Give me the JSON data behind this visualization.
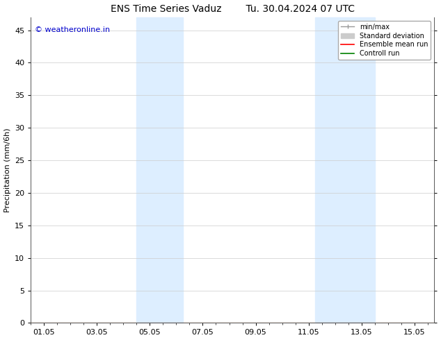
{
  "title_left": "ENS Time Series Vaduz",
  "title_right": "Tu. 30.04.2024 07 UTC",
  "ylabel": "Precipitation (mm/6h)",
  "ylim": [
    0,
    47
  ],
  "yticks": [
    0,
    5,
    10,
    15,
    20,
    25,
    30,
    35,
    40,
    45
  ],
  "xtick_labels": [
    "01.05",
    "03.05",
    "05.05",
    "07.05",
    "09.05",
    "11.05",
    "13.05",
    "15.05"
  ],
  "xtick_positions": [
    0,
    2,
    4,
    6,
    8,
    10,
    12,
    14
  ],
  "xlim": [
    -0.5,
    14.75
  ],
  "shaded_regions": [
    {
      "start": 3.5,
      "end": 5.25,
      "color": "#ddeeff"
    },
    {
      "start": 10.25,
      "end": 12.5,
      "color": "#ddeeff"
    }
  ],
  "watermark_text": "© weatheronline.in",
  "watermark_color": "#0000cc",
  "legend_entries": [
    {
      "label": "min/max",
      "color": "#999999",
      "lw": 1.2
    },
    {
      "label": "Standard deviation",
      "color": "#cccccc",
      "lw": 5
    },
    {
      "label": "Ensemble mean run",
      "color": "#ff0000",
      "lw": 1.2
    },
    {
      "label": "Controll run",
      "color": "#008000",
      "lw": 1.2
    }
  ],
  "bg_color": "#ffffff",
  "title_fontsize": 10,
  "axis_label_fontsize": 8,
  "tick_fontsize": 8,
  "watermark_fontsize": 8,
  "legend_fontsize": 7
}
